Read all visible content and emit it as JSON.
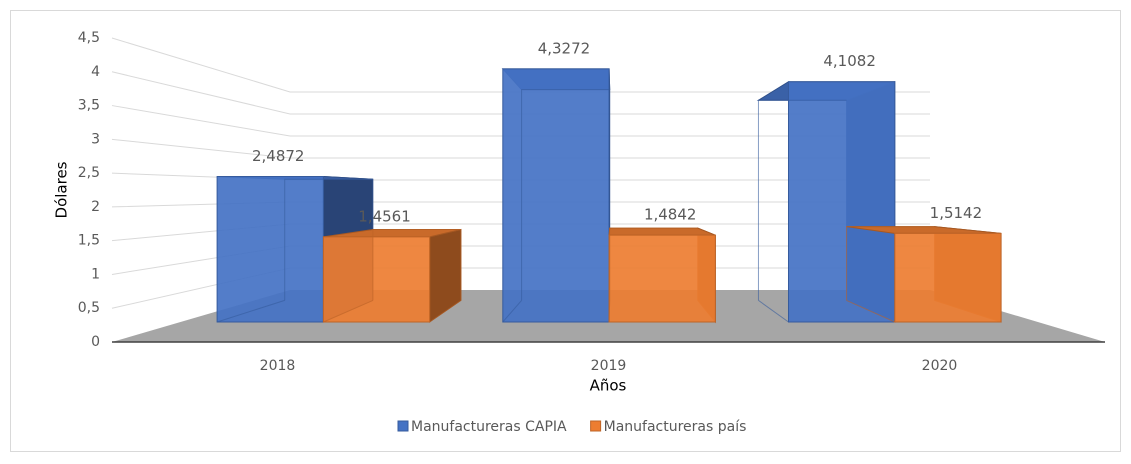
{
  "chart_data": {
    "type": "bar3d",
    "categories": [
      "2018",
      "2019",
      "2020"
    ],
    "series": [
      {
        "name": "Manufactureras CAPIA",
        "color": "#4472c4",
        "values": [
          2.4872,
          4.3272,
          4.1082
        ],
        "value_labels": [
          "2,4872",
          "4,3272",
          "4,1082"
        ]
      },
      {
        "name": "Manufactureras país",
        "color": "#ed7d31",
        "values": [
          1.4561,
          1.4842,
          1.5142
        ],
        "value_labels": [
          "1,4561",
          "1,4842",
          "1,5142"
        ]
      }
    ],
    "ylim": [
      0,
      4.5
    ],
    "yticks": [
      0,
      {
        "value": 0.5,
        "label": "0,5"
      },
      1,
      {
        "value": 1.5,
        "label": "1,5"
      },
      2,
      {
        "value": 2.5,
        "label": "2,5"
      },
      3,
      {
        "value": 3.5,
        "label": "3,5"
      },
      4,
      {
        "value": 4.5,
        "label": "4,5"
      }
    ],
    "y_label": "Dólares",
    "x_label": "Años",
    "grid": true,
    "legend": "bottom"
  }
}
